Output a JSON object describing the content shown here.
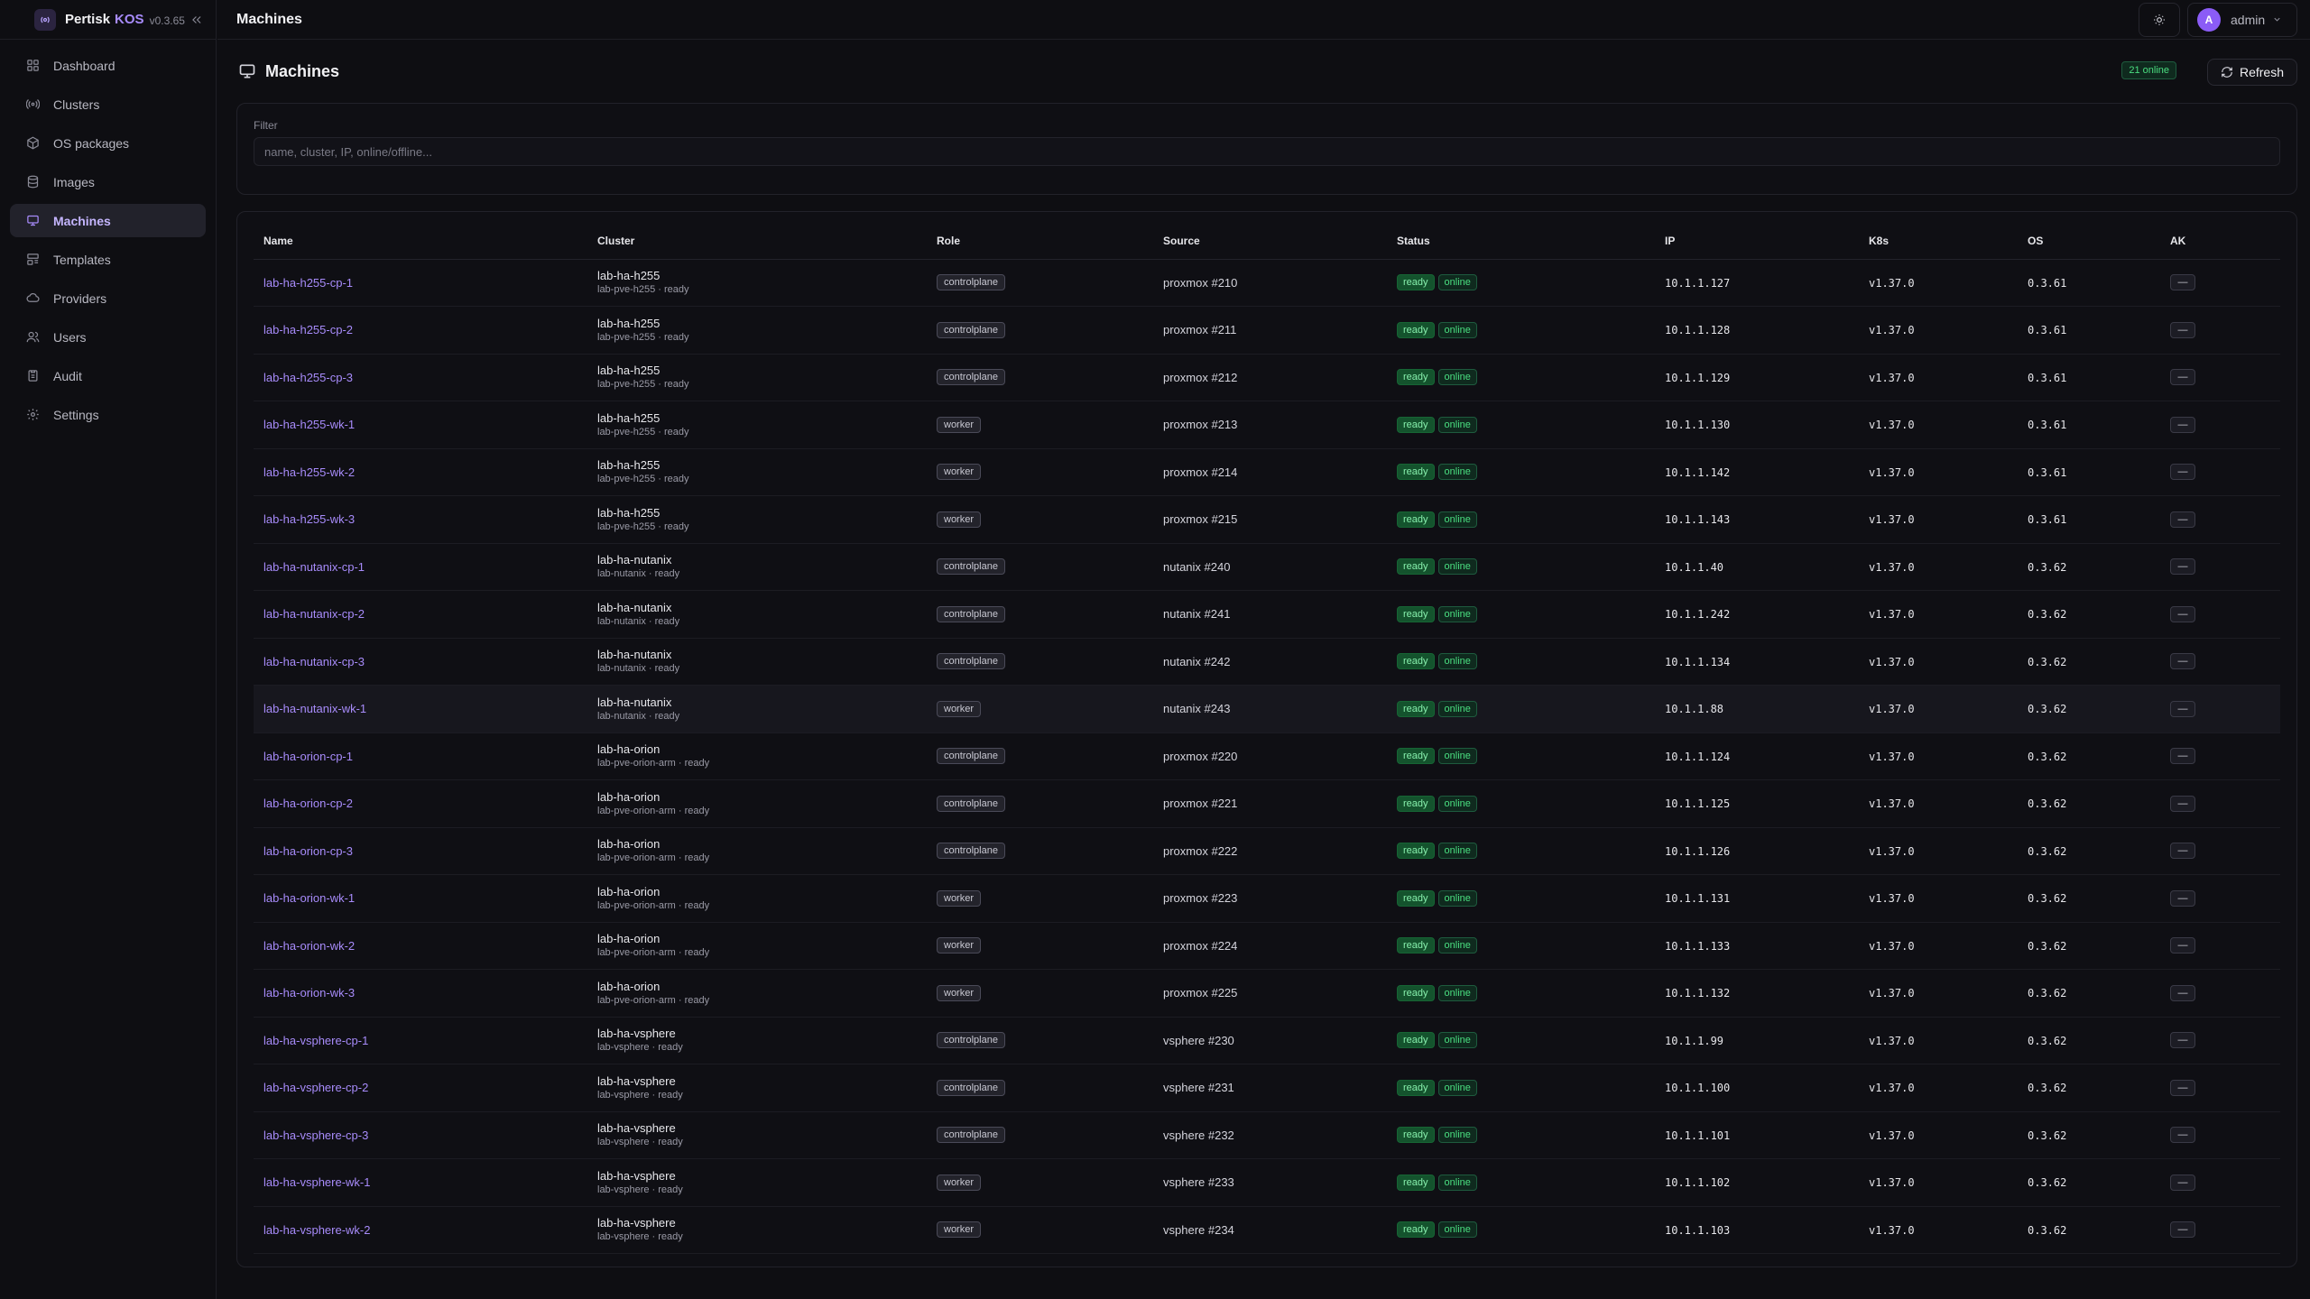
{
  "brand": {
    "name": "Pertisk",
    "product": "KOS",
    "version": "v0.3.65"
  },
  "sidebar": {
    "items": [
      {
        "label": "Dashboard",
        "icon": "dashboard-icon",
        "active": false
      },
      {
        "label": "Clusters",
        "icon": "clusters-icon",
        "active": false
      },
      {
        "label": "OS packages",
        "icon": "package-icon",
        "active": false
      },
      {
        "label": "Images",
        "icon": "images-icon",
        "active": false
      },
      {
        "label": "Machines",
        "icon": "machines-icon",
        "active": true
      },
      {
        "label": "Templates",
        "icon": "templates-icon",
        "active": false
      },
      {
        "label": "Providers",
        "icon": "cloud-icon",
        "active": false
      },
      {
        "label": "Users",
        "icon": "users-icon",
        "active": false
      },
      {
        "label": "Audit",
        "icon": "audit-icon",
        "active": false
      },
      {
        "label": "Settings",
        "icon": "gear-icon",
        "active": false
      }
    ]
  },
  "topbar": {
    "title": "Machines",
    "user": {
      "initial": "A",
      "name": "admin"
    }
  },
  "page": {
    "title": "Machines",
    "online_badge": "21 online",
    "refresh_label": "Refresh"
  },
  "filter": {
    "label": "Filter",
    "placeholder": "name, cluster, IP, online/offline...",
    "value": ""
  },
  "table": {
    "columns": [
      "Name",
      "Cluster",
      "Role",
      "Source",
      "Status",
      "IP",
      "K8s",
      "OS",
      "AK"
    ],
    "ak_label": "—",
    "rows": [
      {
        "name": "lab-ha-h255-cp-1",
        "cluster": "lab-ha-h255",
        "cluster_sub": "lab-pve-h255 · ready",
        "role": "controlplane",
        "source": "proxmox #210",
        "status": "ready",
        "conn": "online",
        "ip": "10.1.1.127",
        "k8s": "v1.37.0",
        "os": "0.3.61"
      },
      {
        "name": "lab-ha-h255-cp-2",
        "cluster": "lab-ha-h255",
        "cluster_sub": "lab-pve-h255 · ready",
        "role": "controlplane",
        "source": "proxmox #211",
        "status": "ready",
        "conn": "online",
        "ip": "10.1.1.128",
        "k8s": "v1.37.0",
        "os": "0.3.61"
      },
      {
        "name": "lab-ha-h255-cp-3",
        "cluster": "lab-ha-h255",
        "cluster_sub": "lab-pve-h255 · ready",
        "role": "controlplane",
        "source": "proxmox #212",
        "status": "ready",
        "conn": "online",
        "ip": "10.1.1.129",
        "k8s": "v1.37.0",
        "os": "0.3.61"
      },
      {
        "name": "lab-ha-h255-wk-1",
        "cluster": "lab-ha-h255",
        "cluster_sub": "lab-pve-h255 · ready",
        "role": "worker",
        "source": "proxmox #213",
        "status": "ready",
        "conn": "online",
        "ip": "10.1.1.130",
        "k8s": "v1.37.0",
        "os": "0.3.61"
      },
      {
        "name": "lab-ha-h255-wk-2",
        "cluster": "lab-ha-h255",
        "cluster_sub": "lab-pve-h255 · ready",
        "role": "worker",
        "source": "proxmox #214",
        "status": "ready",
        "conn": "online",
        "ip": "10.1.1.142",
        "k8s": "v1.37.0",
        "os": "0.3.61"
      },
      {
        "name": "lab-ha-h255-wk-3",
        "cluster": "lab-ha-h255",
        "cluster_sub": "lab-pve-h255 · ready",
        "role": "worker",
        "source": "proxmox #215",
        "status": "ready",
        "conn": "online",
        "ip": "10.1.1.143",
        "k8s": "v1.37.0",
        "os": "0.3.61"
      },
      {
        "name": "lab-ha-nutanix-cp-1",
        "cluster": "lab-ha-nutanix",
        "cluster_sub": "lab-nutanix · ready",
        "role": "controlplane",
        "source": "nutanix #240",
        "status": "ready",
        "conn": "online",
        "ip": "10.1.1.40",
        "k8s": "v1.37.0",
        "os": "0.3.62"
      },
      {
        "name": "lab-ha-nutanix-cp-2",
        "cluster": "lab-ha-nutanix",
        "cluster_sub": "lab-nutanix · ready",
        "role": "controlplane",
        "source": "nutanix #241",
        "status": "ready",
        "conn": "online",
        "ip": "10.1.1.242",
        "k8s": "v1.37.0",
        "os": "0.3.62"
      },
      {
        "name": "lab-ha-nutanix-cp-3",
        "cluster": "lab-ha-nutanix",
        "cluster_sub": "lab-nutanix · ready",
        "role": "controlplane",
        "source": "nutanix #242",
        "status": "ready",
        "conn": "online",
        "ip": "10.1.1.134",
        "k8s": "v1.37.0",
        "os": "0.3.62"
      },
      {
        "name": "lab-ha-nutanix-wk-1",
        "cluster": "lab-ha-nutanix",
        "cluster_sub": "lab-nutanix · ready",
        "role": "worker",
        "source": "nutanix #243",
        "status": "ready",
        "conn": "online",
        "ip": "10.1.1.88",
        "k8s": "v1.37.0",
        "os": "0.3.62",
        "highlight": true
      },
      {
        "name": "lab-ha-orion-cp-1",
        "cluster": "lab-ha-orion",
        "cluster_sub": "lab-pve-orion-arm · ready",
        "role": "controlplane",
        "source": "proxmox #220",
        "status": "ready",
        "conn": "online",
        "ip": "10.1.1.124",
        "k8s": "v1.37.0",
        "os": "0.3.62"
      },
      {
        "name": "lab-ha-orion-cp-2",
        "cluster": "lab-ha-orion",
        "cluster_sub": "lab-pve-orion-arm · ready",
        "role": "controlplane",
        "source": "proxmox #221",
        "status": "ready",
        "conn": "online",
        "ip": "10.1.1.125",
        "k8s": "v1.37.0",
        "os": "0.3.62"
      },
      {
        "name": "lab-ha-orion-cp-3",
        "cluster": "lab-ha-orion",
        "cluster_sub": "lab-pve-orion-arm · ready",
        "role": "controlplane",
        "source": "proxmox #222",
        "status": "ready",
        "conn": "online",
        "ip": "10.1.1.126",
        "k8s": "v1.37.0",
        "os": "0.3.62"
      },
      {
        "name": "lab-ha-orion-wk-1",
        "cluster": "lab-ha-orion",
        "cluster_sub": "lab-pve-orion-arm · ready",
        "role": "worker",
        "source": "proxmox #223",
        "status": "ready",
        "conn": "online",
        "ip": "10.1.1.131",
        "k8s": "v1.37.0",
        "os": "0.3.62"
      },
      {
        "name": "lab-ha-orion-wk-2",
        "cluster": "lab-ha-orion",
        "cluster_sub": "lab-pve-orion-arm · ready",
        "role": "worker",
        "source": "proxmox #224",
        "status": "ready",
        "conn": "online",
        "ip": "10.1.1.133",
        "k8s": "v1.37.0",
        "os": "0.3.62"
      },
      {
        "name": "lab-ha-orion-wk-3",
        "cluster": "lab-ha-orion",
        "cluster_sub": "lab-pve-orion-arm · ready",
        "role": "worker",
        "source": "proxmox #225",
        "status": "ready",
        "conn": "online",
        "ip": "10.1.1.132",
        "k8s": "v1.37.0",
        "os": "0.3.62"
      },
      {
        "name": "lab-ha-vsphere-cp-1",
        "cluster": "lab-ha-vsphere",
        "cluster_sub": "lab-vsphere · ready",
        "role": "controlplane",
        "source": "vsphere #230",
        "status": "ready",
        "conn": "online",
        "ip": "10.1.1.99",
        "k8s": "v1.37.0",
        "os": "0.3.62"
      },
      {
        "name": "lab-ha-vsphere-cp-2",
        "cluster": "lab-ha-vsphere",
        "cluster_sub": "lab-vsphere · ready",
        "role": "controlplane",
        "source": "vsphere #231",
        "status": "ready",
        "conn": "online",
        "ip": "10.1.1.100",
        "k8s": "v1.37.0",
        "os": "0.3.62"
      },
      {
        "name": "lab-ha-vsphere-cp-3",
        "cluster": "lab-ha-vsphere",
        "cluster_sub": "lab-vsphere · ready",
        "role": "controlplane",
        "source": "vsphere #232",
        "status": "ready",
        "conn": "online",
        "ip": "10.1.1.101",
        "k8s": "v1.37.0",
        "os": "0.3.62"
      },
      {
        "name": "lab-ha-vsphere-wk-1",
        "cluster": "lab-ha-vsphere",
        "cluster_sub": "lab-vsphere · ready",
        "role": "worker",
        "source": "vsphere #233",
        "status": "ready",
        "conn": "online",
        "ip": "10.1.1.102",
        "k8s": "v1.37.0",
        "os": "0.3.62"
      },
      {
        "name": "lab-ha-vsphere-wk-2",
        "cluster": "lab-ha-vsphere",
        "cluster_sub": "lab-vsphere · ready",
        "role": "worker",
        "source": "vsphere #234",
        "status": "ready",
        "conn": "online",
        "ip": "10.1.1.103",
        "k8s": "v1.37.0",
        "os": "0.3.62"
      }
    ]
  }
}
